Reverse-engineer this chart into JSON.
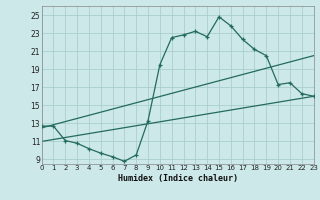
{
  "xlabel": "Humidex (Indice chaleur)",
  "xlim": [
    0,
    23
  ],
  "ylim": [
    8.5,
    26
  ],
  "xticks": [
    0,
    1,
    2,
    3,
    4,
    5,
    6,
    7,
    8,
    9,
    10,
    11,
    12,
    13,
    14,
    15,
    16,
    17,
    18,
    19,
    20,
    21,
    22,
    23
  ],
  "yticks": [
    9,
    11,
    13,
    15,
    17,
    19,
    21,
    23,
    25
  ],
  "bg_color": "#cce8e8",
  "grid_color": "#aacece",
  "line_color": "#236b5a",
  "main_line_x": [
    0,
    1,
    2,
    3,
    4,
    5,
    6,
    7,
    8,
    9,
    10,
    11,
    12,
    13,
    14,
    15,
    16,
    17,
    18,
    19,
    20,
    21,
    22,
    23
  ],
  "main_line_y": [
    12.7,
    12.7,
    11.1,
    10.8,
    10.2,
    9.7,
    9.3,
    8.8,
    9.5,
    13.3,
    19.5,
    22.5,
    22.8,
    23.2,
    22.6,
    24.8,
    23.8,
    22.3,
    21.2,
    20.5,
    17.3,
    17.5,
    16.3,
    16.0
  ],
  "trend1_x": [
    0,
    23
  ],
  "trend1_y": [
    12.5,
    20.5
  ],
  "trend2_x": [
    0,
    23
  ],
  "trend2_y": [
    11.0,
    16.0
  ]
}
